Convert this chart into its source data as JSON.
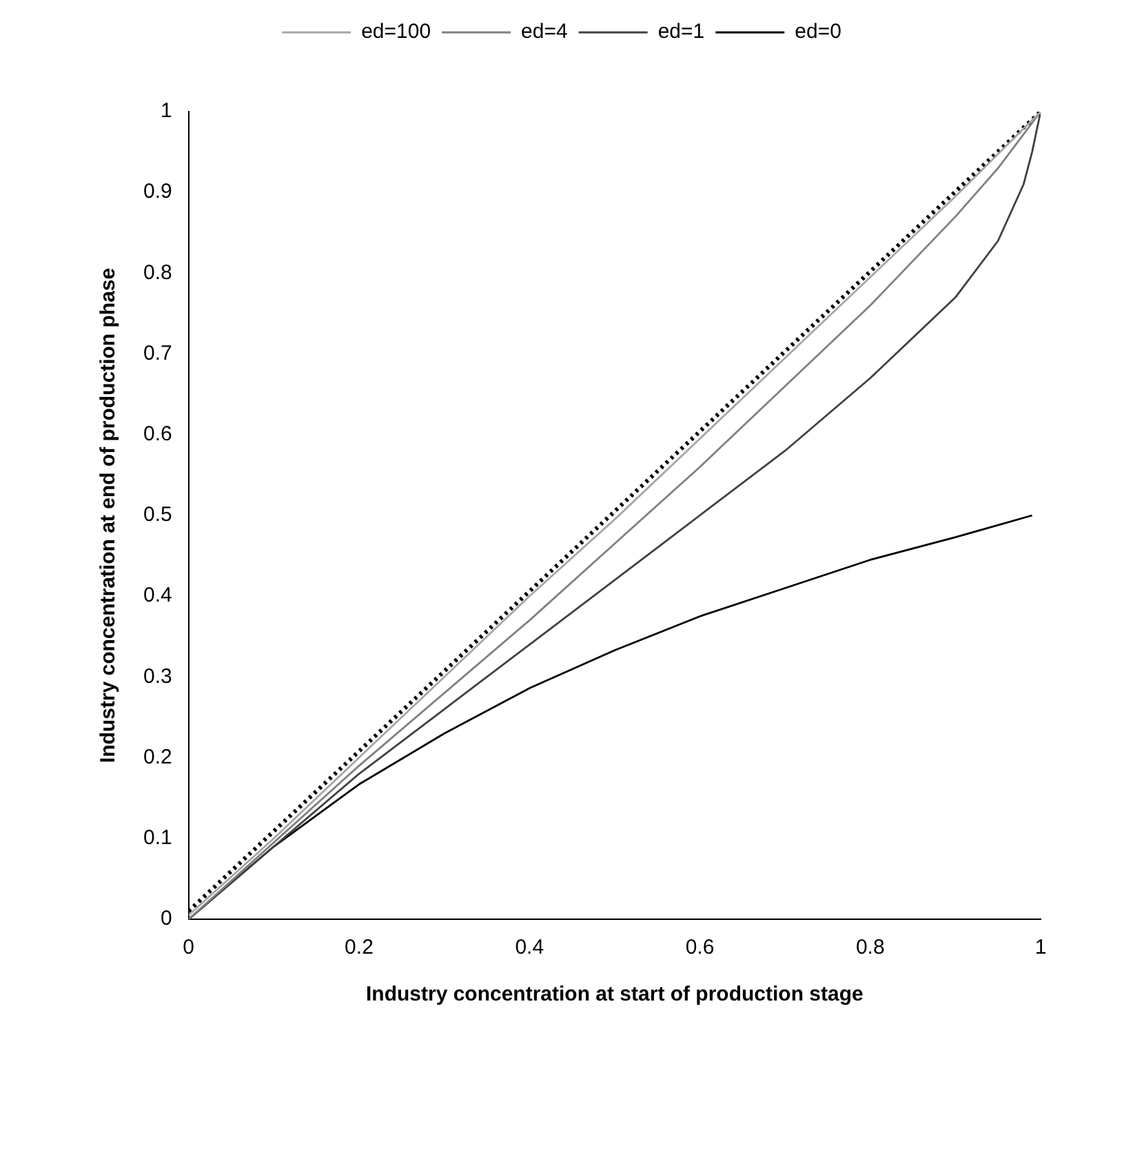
{
  "chart_data": {
    "type": "line",
    "xlabel": "Industry concentration at start of production stage",
    "ylabel": "Industry concentration at end of production phase",
    "xlim": [
      0,
      1
    ],
    "xticks": [
      0,
      0.2,
      0.4,
      0.6,
      0.8,
      1
    ],
    "ylim": [
      0,
      1
    ],
    "yticks": [
      0,
      0.1,
      0.2,
      0.3,
      0.4,
      0.5,
      0.6,
      0.7,
      0.8,
      0.9,
      1
    ],
    "grid": false,
    "legend": "top",
    "marker": "none",
    "series": [
      {
        "name": "ed=100",
        "color": "#a6a6a6",
        "x": [
          0,
          0.1,
          0.2,
          0.3,
          0.4,
          0.5,
          0.6,
          0.7,
          0.8,
          0.9,
          1
        ],
        "values": [
          0.005,
          0.1,
          0.2,
          0.3,
          0.4,
          0.495,
          0.595,
          0.695,
          0.795,
          0.895,
          1
        ]
      },
      {
        "name": "ed=4",
        "color": "#808080",
        "x": [
          0,
          0.1,
          0.2,
          0.3,
          0.4,
          0.5,
          0.6,
          0.7,
          0.8,
          0.9,
          0.95,
          1
        ],
        "values": [
          0,
          0.095,
          0.19,
          0.28,
          0.37,
          0.465,
          0.56,
          0.66,
          0.76,
          0.87,
          0.93,
          1
        ]
      },
      {
        "name": "ed=1",
        "color": "#404040",
        "x": [
          0,
          0.1,
          0.2,
          0.3,
          0.4,
          0.5,
          0.6,
          0.7,
          0.8,
          0.9,
          0.95,
          0.98,
          0.99,
          1
        ],
        "values": [
          0,
          0.09,
          0.18,
          0.26,
          0.34,
          0.42,
          0.5,
          0.58,
          0.67,
          0.77,
          0.84,
          0.91,
          0.95,
          1
        ]
      },
      {
        "name": "ed=0",
        "color": "#000000",
        "x": [
          0,
          0.1,
          0.2,
          0.3,
          0.4,
          0.5,
          0.6,
          0.7,
          0.8,
          0.9,
          0.99
        ],
        "values": [
          0,
          0.09,
          0.167,
          0.23,
          0.286,
          0.333,
          0.375,
          0.41,
          0.445,
          0.473,
          0.5
        ]
      },
      {
        "color": "#000000",
        "line_style": "dotted",
        "x": [
          0,
          1
        ],
        "values": [
          0.01,
          1
        ]
      }
    ]
  }
}
